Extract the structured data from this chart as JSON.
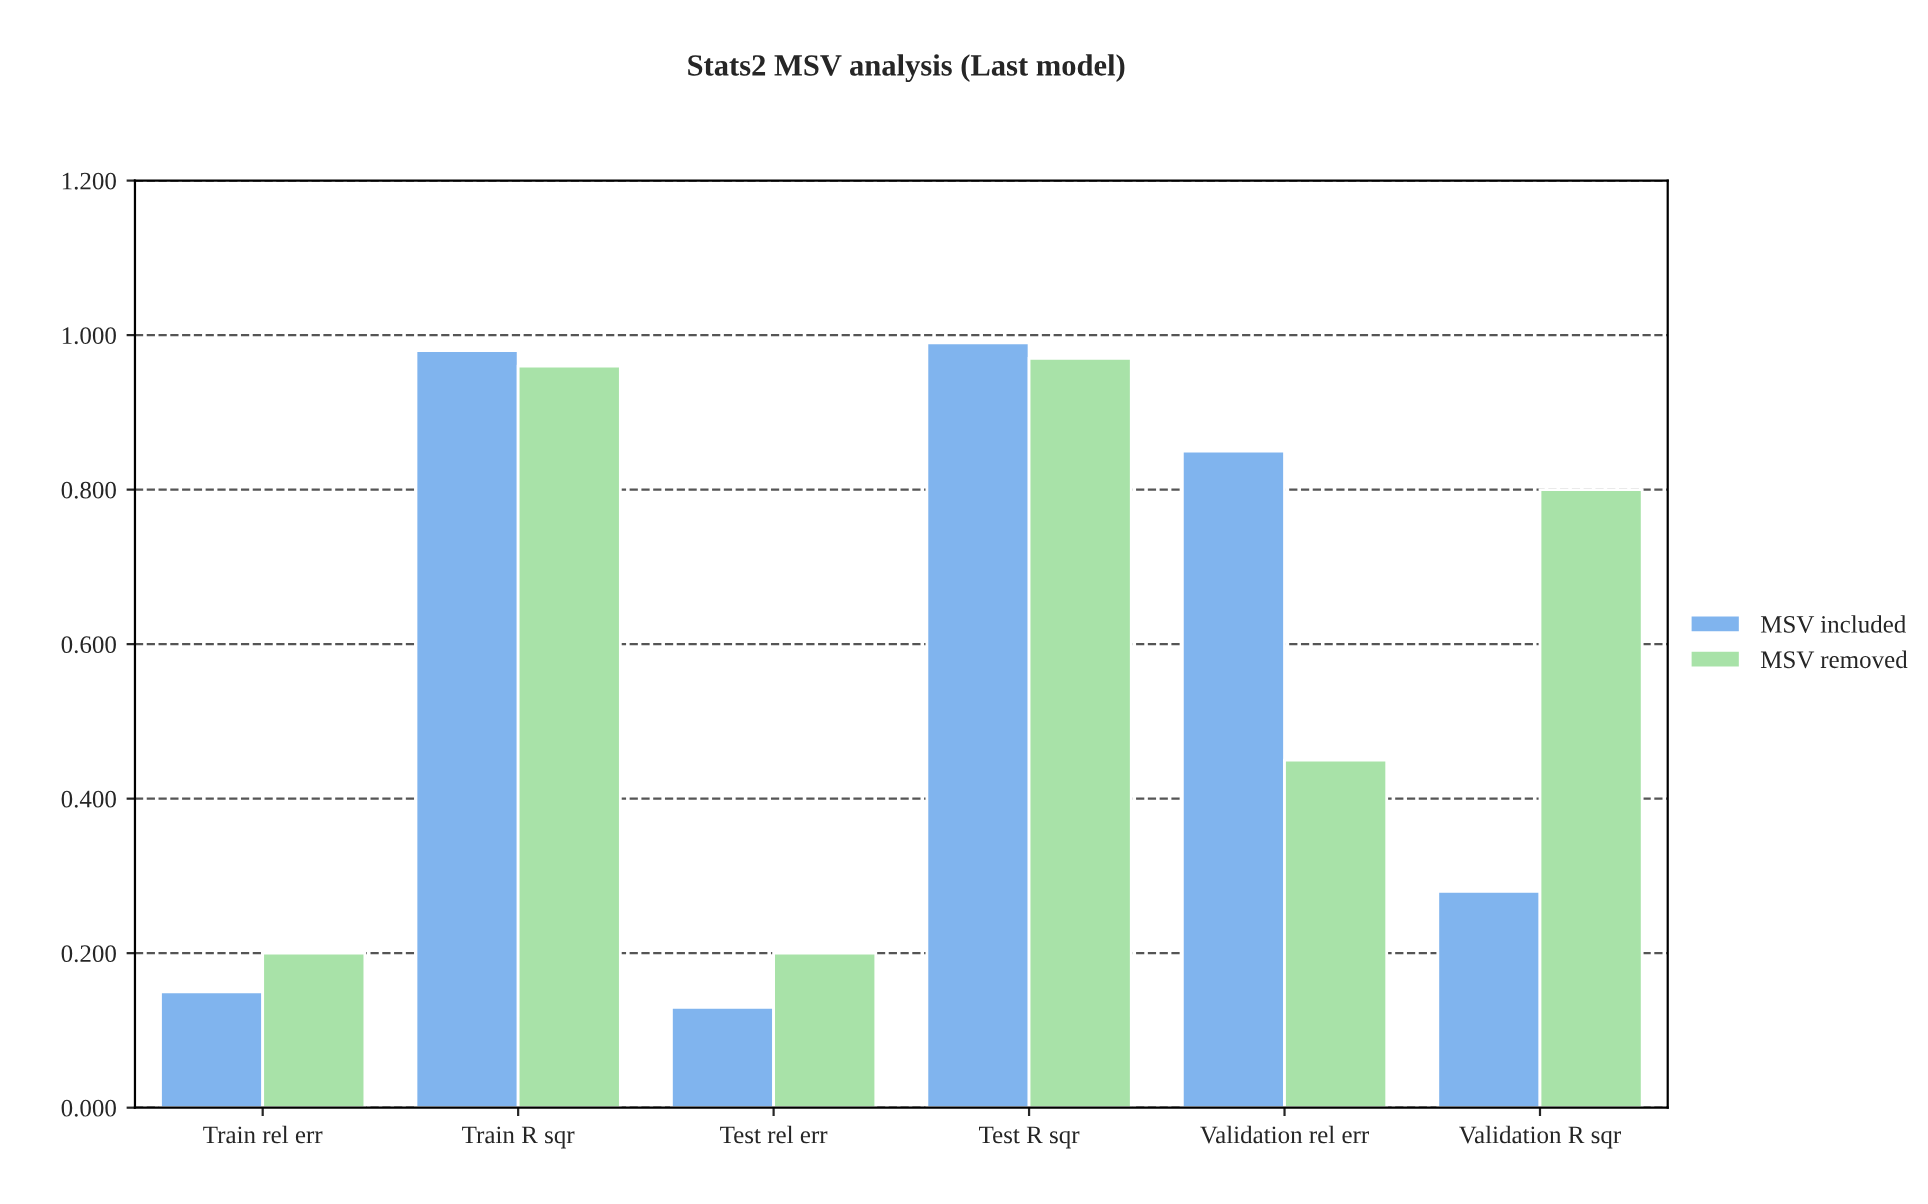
{
  "chart_data": {
    "type": "bar",
    "title": "Stats2 MSV analysis (Last model)",
    "categories": [
      "Train rel err",
      "Train R sqr",
      "Test rel err",
      "Test R sqr",
      "Validation rel err",
      "Validation R sqr"
    ],
    "series": [
      {
        "name": "MSV included",
        "color": "#80b4ee",
        "values": [
          0.15,
          0.98,
          0.13,
          0.99,
          0.85,
          0.28
        ]
      },
      {
        "name": "MSV removed",
        "color": "#a8e2a8",
        "values": [
          0.2,
          0.96,
          0.2,
          0.97,
          0.45,
          0.8
        ]
      }
    ],
    "ylim": [
      0,
      1.2
    ],
    "yticks": [
      {
        "value": 0,
        "label": "0.000"
      },
      {
        "value": 0.2,
        "label": "0.200"
      },
      {
        "value": 0.4,
        "label": "0.400"
      },
      {
        "value": 0.6,
        "label": "0.600"
      },
      {
        "value": 0.8,
        "label": "0.800"
      },
      {
        "value": 1.0,
        "label": "1.000"
      },
      {
        "value": 1.2,
        "label": "1.200"
      }
    ],
    "grid": "y",
    "legend": "right"
  }
}
